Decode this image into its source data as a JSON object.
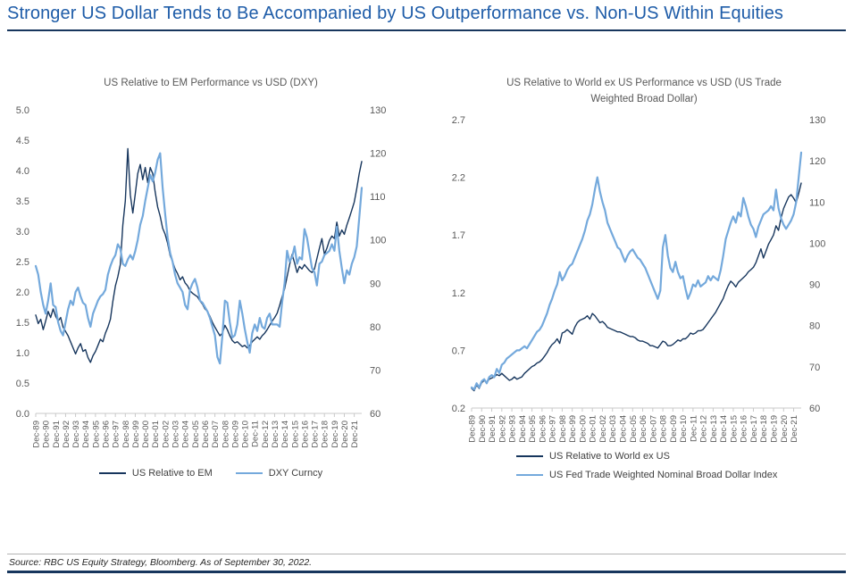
{
  "page": {
    "title": "Stronger US Dollar Tends to Be Accompanied by US Outperformance vs. Non-US Within Equities",
    "title_color": "#1E5CA8",
    "rule_color": "#17365D",
    "source_note": "Source: RBC US Equity Strategy, Bloomberg. As of September 30, 2022."
  },
  "chart_data": [
    {
      "type": "line",
      "title": "US Relative to EM Performance vs USD (DXY)",
      "points_per_year": 4,
      "x_labels": [
        "Dec-89",
        "Dec-90",
        "Dec-91",
        "Dec-92",
        "Dec-93",
        "Dec-94",
        "Dec-95",
        "Dec-96",
        "Dec-97",
        "Dec-98",
        "Dec-99",
        "Dec-00",
        "Dec-01",
        "Dec-02",
        "Dec-03",
        "Dec-04",
        "Dec-05",
        "Dec-06",
        "Dec-07",
        "Dec-08",
        "Dec-09",
        "Dec-10",
        "Dec-11",
        "Dec-12",
        "Dec-13",
        "Dec-14",
        "Dec-15",
        "Dec-16",
        "Dec-17",
        "Dec-18",
        "Dec-19",
        "Dec-20",
        "Dec-21"
      ],
      "left_axis": {
        "min": 0.0,
        "max": 5.0,
        "step": 0.5,
        "decimals": 1
      },
      "right_axis": {
        "min": 60,
        "max": 130,
        "step": 10,
        "decimals": 0
      },
      "legend_layout": "row",
      "series": [
        {
          "name": "US Relative to EM",
          "axis": "left",
          "color": "#17365D",
          "values": [
            1.62,
            1.48,
            1.55,
            1.38,
            1.52,
            1.68,
            1.58,
            1.72,
            1.6,
            1.52,
            1.58,
            1.42,
            1.35,
            1.28,
            1.18,
            1.08,
            0.98,
            1.08,
            1.15,
            1.02,
            1.05,
            0.92,
            0.84,
            0.95,
            1.02,
            1.12,
            1.22,
            1.18,
            1.32,
            1.42,
            1.55,
            1.85,
            2.1,
            2.25,
            2.45,
            3.1,
            3.5,
            4.36,
            3.6,
            3.3,
            3.62,
            3.95,
            4.1,
            3.85,
            4.05,
            3.8,
            4.05,
            3.95,
            3.65,
            3.4,
            3.25,
            3.05,
            2.95,
            2.8,
            2.6,
            2.5,
            2.38,
            2.3,
            2.2,
            2.25,
            2.15,
            2.1,
            2.02,
            1.98,
            1.95,
            1.92,
            1.85,
            1.8,
            1.72,
            1.68,
            1.6,
            1.5,
            1.42,
            1.35,
            1.28,
            1.32,
            1.45,
            1.38,
            1.28,
            1.2,
            1.16,
            1.18,
            1.14,
            1.1,
            1.12,
            1.08,
            1.12,
            1.18,
            1.22,
            1.26,
            1.22,
            1.28,
            1.32,
            1.38,
            1.45,
            1.52,
            1.58,
            1.65,
            1.78,
            1.92,
            2.05,
            2.25,
            2.45,
            2.62,
            2.48,
            2.32,
            2.42,
            2.38,
            2.45,
            2.4,
            2.35,
            2.32,
            2.38,
            2.55,
            2.72,
            2.88,
            2.62,
            2.72,
            2.85,
            2.92,
            2.88,
            3.15,
            2.92,
            3.02,
            2.95,
            3.1,
            3.22,
            3.35,
            3.48,
            3.7,
            3.95,
            4.15
          ]
        },
        {
          "name": "DXY Curncy",
          "axis": "right",
          "color": "#74A9DC",
          "values": [
            94,
            92,
            88,
            85,
            83,
            86,
            90,
            85,
            84.5,
            81,
            79,
            78,
            81,
            84,
            86,
            85,
            88,
            89,
            87,
            85.5,
            85,
            82,
            80,
            83,
            84.5,
            86,
            87,
            87.5,
            88.5,
            92,
            94,
            95.5,
            96.5,
            99,
            98,
            94.5,
            94,
            95.5,
            96.5,
            95.5,
            97.5,
            100,
            103.5,
            105.5,
            109,
            112,
            115,
            113.5,
            115.5,
            118.5,
            120,
            112,
            106,
            100.5,
            97,
            95,
            92,
            90,
            89,
            88,
            85,
            84,
            88.5,
            90,
            91,
            89,
            86,
            85.5,
            84.5,
            83.5,
            82,
            80,
            78,
            73,
            71.5,
            78,
            86,
            85.5,
            81,
            77.5,
            78,
            80.5,
            86,
            83,
            79.5,
            76.5,
            74,
            78.5,
            80.5,
            79,
            82,
            80,
            79.5,
            82,
            83,
            80.5,
            80.5,
            80.5,
            80,
            85.5,
            90,
            97.5,
            95,
            96,
            98.5,
            94.5,
            96,
            95.5,
            102.5,
            100.5,
            97,
            93.5,
            92.5,
            89.5,
            94.5,
            95,
            96.5,
            97,
            97.5,
            99,
            97.5,
            103,
            97.5,
            93.5,
            90,
            93,
            92,
            94.5,
            96,
            98.5,
            105,
            112
          ]
        }
      ]
    },
    {
      "type": "line",
      "title": "US Relative to World ex US Performance vs USD (US Trade Weighted Broad Dollar)",
      "points_per_year": 4,
      "x_labels": [
        "Dec-89",
        "Dec-90",
        "Dec-91",
        "Dec-92",
        "Dec-93",
        "Dec-94",
        "Dec-95",
        "Dec-96",
        "Dec-97",
        "Dec-98",
        "Dec-99",
        "Dec-00",
        "Dec-01",
        "Dec-02",
        "Dec-03",
        "Dec-04",
        "Dec-05",
        "Dec-06",
        "Dec-07",
        "Dec-08",
        "Dec-09",
        "Dec-10",
        "Dec-11",
        "Dec-12",
        "Dec-13",
        "Dec-14",
        "Dec-15",
        "Dec-16",
        "Dec-17",
        "Dec-18",
        "Dec-19",
        "Dec-20",
        "Dec-21"
      ],
      "left_axis": {
        "min": 0.2,
        "max": 2.7,
        "step": 0.5,
        "decimals": 1
      },
      "right_axis": {
        "min": 60,
        "max": 130,
        "step": 10,
        "decimals": 0
      },
      "legend_layout": "column",
      "series": [
        {
          "name": "US Relative to World ex US",
          "axis": "left",
          "color": "#17365D",
          "values": [
            0.37,
            0.35,
            0.4,
            0.37,
            0.42,
            0.44,
            0.42,
            0.45,
            0.46,
            0.47,
            0.49,
            0.48,
            0.5,
            0.48,
            0.46,
            0.44,
            0.45,
            0.47,
            0.45,
            0.46,
            0.47,
            0.5,
            0.52,
            0.54,
            0.56,
            0.57,
            0.59,
            0.6,
            0.62,
            0.65,
            0.68,
            0.72,
            0.75,
            0.77,
            0.8,
            0.76,
            0.85,
            0.86,
            0.88,
            0.86,
            0.84,
            0.9,
            0.94,
            0.96,
            0.97,
            0.98,
            1.0,
            0.97,
            1.02,
            1.0,
            0.97,
            0.94,
            0.95,
            0.93,
            0.9,
            0.89,
            0.88,
            0.87,
            0.86,
            0.86,
            0.85,
            0.84,
            0.83,
            0.82,
            0.82,
            0.81,
            0.79,
            0.78,
            0.78,
            0.77,
            0.76,
            0.74,
            0.74,
            0.73,
            0.72,
            0.75,
            0.78,
            0.77,
            0.74,
            0.74,
            0.75,
            0.77,
            0.79,
            0.78,
            0.8,
            0.8,
            0.82,
            0.85,
            0.84,
            0.85,
            0.87,
            0.87,
            0.88,
            0.91,
            0.94,
            0.97,
            1.0,
            1.03,
            1.07,
            1.11,
            1.15,
            1.21,
            1.26,
            1.3,
            1.28,
            1.25,
            1.29,
            1.31,
            1.33,
            1.35,
            1.38,
            1.4,
            1.42,
            1.46,
            1.52,
            1.58,
            1.5,
            1.56,
            1.62,
            1.66,
            1.7,
            1.78,
            1.74,
            1.85,
            1.93,
            1.98,
            2.03,
            2.05,
            2.02,
            1.98,
            2.06,
            2.15
          ]
        },
        {
          "name": "US Fed Trade Weighted Nominal Broad Dollar Index",
          "axis": "right",
          "color": "#74A9DC",
          "values": [
            65,
            64.5,
            66,
            65,
            66.5,
            67,
            66,
            67.5,
            68,
            67.5,
            69.5,
            68.5,
            70.5,
            71,
            72,
            72.5,
            73,
            73.5,
            74,
            74,
            74.5,
            75,
            74.5,
            75.5,
            76.5,
            77.5,
            78.5,
            79,
            80,
            81.5,
            83,
            85,
            86.5,
            88.5,
            90,
            93,
            91,
            92,
            93.5,
            94.5,
            95,
            96.5,
            98,
            99.5,
            101,
            103,
            105.5,
            107,
            109.5,
            113,
            116,
            112.5,
            110,
            108,
            105,
            103.5,
            102,
            100.5,
            99,
            98.5,
            97,
            95.5,
            97,
            98,
            98.5,
            97.5,
            96.5,
            96,
            95,
            94,
            92.5,
            91,
            89.5,
            88,
            86.5,
            88.5,
            99,
            102,
            97,
            94,
            93,
            95.5,
            93,
            91.5,
            92,
            89,
            86.5,
            88,
            90,
            89.5,
            91,
            89.5,
            90,
            90.5,
            92,
            91,
            92,
            91.5,
            91,
            93.5,
            97,
            101,
            103,
            105,
            106.5,
            105,
            107.5,
            106.5,
            111,
            109,
            106.5,
            104.5,
            103.5,
            101.5,
            104,
            105.5,
            107,
            107.5,
            108,
            109,
            108,
            113,
            108.5,
            106,
            104.5,
            103.5,
            104.5,
            105.5,
            107,
            110,
            116,
            122
          ]
        }
      ]
    }
  ]
}
